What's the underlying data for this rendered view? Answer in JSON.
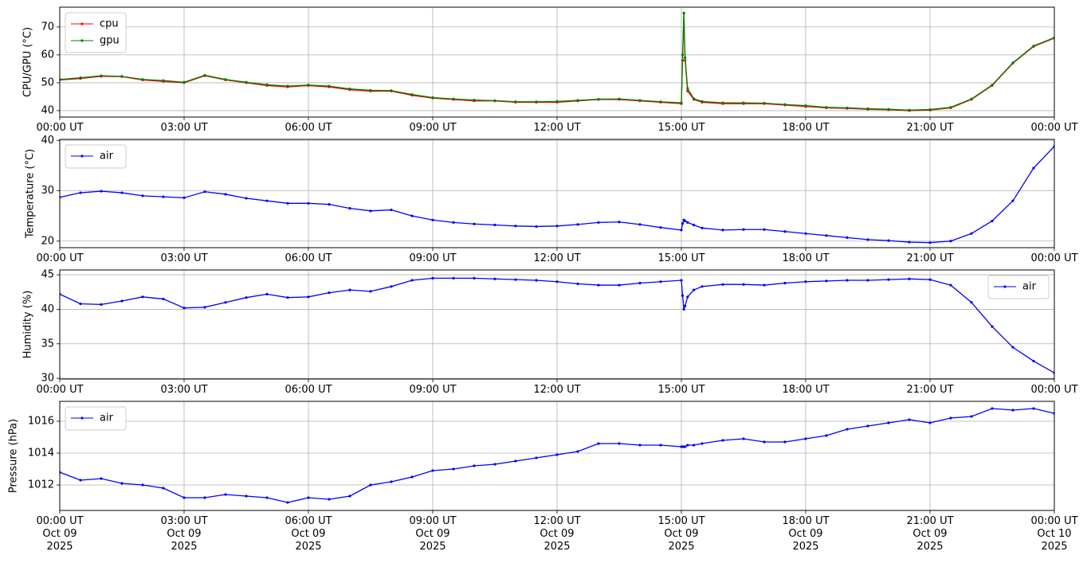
{
  "chart_data": [
    {
      "type": "line",
      "ylabel": "CPU/GPU (°C)",
      "x": [
        0,
        0.5,
        1,
        1.5,
        2,
        2.5,
        3,
        3.5,
        4,
        4.5,
        5,
        5.5,
        6,
        6.5,
        7,
        7.5,
        8,
        8.5,
        9,
        9.5,
        10,
        10.5,
        11,
        11.5,
        12,
        12.5,
        13,
        13.5,
        14,
        14.5,
        15,
        15.03,
        15.06,
        15.09,
        15.15,
        15.3,
        15.5,
        16,
        16.5,
        17,
        17.5,
        18,
        18.5,
        19,
        19.5,
        20,
        20.5,
        21,
        21.5,
        22,
        22.5,
        23,
        23.5,
        24
      ],
      "series": [
        {
          "name": "cpu",
          "color": "#ff0000",
          "values": [
            51,
            51.5,
            52.3,
            52.2,
            51,
            50.5,
            50,
            52.5,
            51,
            50,
            49,
            48.5,
            49,
            48.5,
            47.5,
            47,
            47,
            45.5,
            44.5,
            44,
            43.5,
            43.5,
            43,
            43,
            43,
            43.5,
            44,
            44,
            43.5,
            43,
            42.5,
            58,
            75,
            58,
            47,
            44,
            43,
            42.5,
            42.5,
            42.5,
            42,
            41.5,
            41,
            40.8,
            40.5,
            40.3,
            40,
            40.2,
            41,
            44,
            49,
            57,
            63,
            66
          ]
        },
        {
          "name": "gpu",
          "color": "#008000",
          "values": [
            51.2,
            51.8,
            52.5,
            52.3,
            51.2,
            50.8,
            50.2,
            52.7,
            51.2,
            50.2,
            49.3,
            48.8,
            49.2,
            48.8,
            47.8,
            47.3,
            47.2,
            45.8,
            44.7,
            44.2,
            43.8,
            43.6,
            43.2,
            43.2,
            43.3,
            43.7,
            44.1,
            44.2,
            43.7,
            43.2,
            42.8,
            60,
            75,
            59,
            48,
            44.3,
            43.3,
            42.8,
            42.8,
            42.7,
            42.2,
            41.8,
            41.2,
            41,
            40.7,
            40.5,
            40.2,
            40.4,
            41.2,
            44.2,
            49.2,
            57.2,
            63.2,
            66.2
          ]
        }
      ],
      "xlim": [
        0,
        24
      ],
      "xticks": [
        {
          "value": 0,
          "label": "00:00 UT"
        },
        {
          "value": 3,
          "label": "03:00 UT"
        },
        {
          "value": 6,
          "label": "06:00 UT"
        },
        {
          "value": 9,
          "label": "09:00 UT"
        },
        {
          "value": 12,
          "label": "12:00 UT"
        },
        {
          "value": 15,
          "label": "15:00 UT"
        },
        {
          "value": 18,
          "label": "18:00 UT"
        },
        {
          "value": 21,
          "label": "21:00 UT"
        },
        {
          "value": 24,
          "label": "00:00 UT"
        }
      ],
      "ylim": [
        37.7,
        77.1
      ],
      "yticks": [
        40,
        50,
        60,
        70
      ],
      "grid": true,
      "legend": "upper left"
    },
    {
      "type": "line",
      "ylabel": "Temperature (°C)",
      "x": [
        0,
        0.5,
        1,
        1.5,
        2,
        2.5,
        3,
        3.5,
        4,
        4.5,
        5,
        5.5,
        6,
        6.5,
        7,
        7.5,
        8,
        8.5,
        9,
        9.5,
        10,
        10.5,
        11,
        11.5,
        12,
        12.5,
        13,
        13.5,
        14,
        14.5,
        15,
        15.03,
        15.06,
        15.09,
        15.15,
        15.3,
        15.5,
        16,
        16.5,
        17,
        17.5,
        18,
        18.5,
        19,
        19.5,
        20,
        20.5,
        21,
        21.5,
        22,
        22.5,
        23,
        23.5,
        24
      ],
      "series": [
        {
          "name": "air",
          "color": "#0000ff",
          "values": [
            28.7,
            29.6,
            29.9,
            29.6,
            29,
            28.8,
            28.6,
            29.8,
            29.3,
            28.5,
            28,
            27.5,
            27.5,
            27.3,
            26.5,
            26,
            26.2,
            25,
            24.2,
            23.7,
            23.4,
            23.2,
            23,
            22.9,
            23,
            23.3,
            23.7,
            23.8,
            23.3,
            22.7,
            22.2,
            23.5,
            24.2,
            24,
            23.7,
            23.2,
            22.6,
            22.2,
            22.3,
            22.3,
            21.9,
            21.5,
            21.1,
            20.7,
            20.3,
            20.1,
            19.8,
            19.7,
            20,
            21.5,
            24,
            28,
            34.5,
            38.8
          ]
        }
      ],
      "xlim": [
        0,
        24
      ],
      "xticks": [
        {
          "value": 0,
          "label": "00:00 UT"
        },
        {
          "value": 3,
          "label": "03:00 UT"
        },
        {
          "value": 6,
          "label": "06:00 UT"
        },
        {
          "value": 9,
          "label": "09:00 UT"
        },
        {
          "value": 12,
          "label": "12:00 UT"
        },
        {
          "value": 15,
          "label": "15:00 UT"
        },
        {
          "value": 18,
          "label": "18:00 UT"
        },
        {
          "value": 21,
          "label": "21:00 UT"
        },
        {
          "value": 24,
          "label": "00:00 UT"
        }
      ],
      "ylim": [
        18.7,
        40.2
      ],
      "yticks": [
        20,
        30,
        40
      ],
      "grid": true,
      "legend": "upper left"
    },
    {
      "type": "line",
      "ylabel": "Humidity (%)",
      "x": [
        0,
        0.5,
        1,
        1.5,
        2,
        2.5,
        3,
        3.5,
        4,
        4.5,
        5,
        5.5,
        6,
        6.5,
        7,
        7.5,
        8,
        8.5,
        9,
        9.5,
        10,
        10.5,
        11,
        11.5,
        12,
        12.5,
        13,
        13.5,
        14,
        14.5,
        15,
        15.03,
        15.06,
        15.09,
        15.15,
        15.3,
        15.5,
        16,
        16.5,
        17,
        17.5,
        18,
        18.5,
        19,
        19.5,
        20,
        20.5,
        21,
        21.5,
        22,
        22.5,
        23,
        23.5,
        24
      ],
      "series": [
        {
          "name": "air",
          "color": "#0000ff",
          "values": [
            42.2,
            40.8,
            40.7,
            41.2,
            41.8,
            41.5,
            40.2,
            40.3,
            41,
            41.7,
            42.2,
            41.7,
            41.8,
            42.4,
            42.8,
            42.6,
            43.3,
            44.2,
            44.5,
            44.5,
            44.5,
            44.4,
            44.3,
            44.2,
            44,
            43.7,
            43.5,
            43.5,
            43.8,
            44,
            44.2,
            42,
            40,
            40.5,
            41.8,
            42.8,
            43.3,
            43.6,
            43.6,
            43.5,
            43.8,
            44,
            44.1,
            44.2,
            44.2,
            44.3,
            44.4,
            44.3,
            43.5,
            41,
            37.5,
            34.5,
            32.5,
            30.8
          ]
        }
      ],
      "xlim": [
        0,
        24
      ],
      "xticks": [
        {
          "value": 0,
          "label": "00:00 UT"
        },
        {
          "value": 3,
          "label": "03:00 UT"
        },
        {
          "value": 6,
          "label": "06:00 UT"
        },
        {
          "value": 9,
          "label": "09:00 UT"
        },
        {
          "value": 12,
          "label": "12:00 UT"
        },
        {
          "value": 15,
          "label": "15:00 UT"
        },
        {
          "value": 18,
          "label": "18:00 UT"
        },
        {
          "value": 21,
          "label": "21:00 UT"
        },
        {
          "value": 24,
          "label": "00:00 UT"
        }
      ],
      "ylim": [
        29.9,
        45.7
      ],
      "yticks": [
        30,
        35,
        40,
        45
      ],
      "grid": true,
      "legend": "upper right"
    },
    {
      "type": "line",
      "ylabel": "Pressure (hPa)",
      "x": [
        0,
        0.5,
        1,
        1.5,
        2,
        2.5,
        3,
        3.5,
        4,
        4.5,
        5,
        5.5,
        6,
        6.5,
        7,
        7.5,
        8,
        8.5,
        9,
        9.5,
        10,
        10.5,
        11,
        11.5,
        12,
        12.5,
        13,
        13.5,
        14,
        14.5,
        15,
        15.03,
        15.06,
        15.09,
        15.15,
        15.3,
        15.5,
        16,
        16.5,
        17,
        17.5,
        18,
        18.5,
        19,
        19.5,
        20,
        20.5,
        21,
        21.5,
        22,
        22.5,
        23,
        23.5,
        24
      ],
      "series": [
        {
          "name": "air",
          "color": "#0000ff",
          "values": [
            1012.8,
            1012.3,
            1012.4,
            1012.1,
            1012.0,
            1011.8,
            1011.2,
            1011.2,
            1011.4,
            1011.3,
            1011.2,
            1010.9,
            1011.2,
            1011.1,
            1011.3,
            1012.0,
            1012.2,
            1012.5,
            1012.9,
            1013.0,
            1013.2,
            1013.3,
            1013.5,
            1013.7,
            1013.9,
            1014.1,
            1014.6,
            1014.6,
            1014.5,
            1014.5,
            1014.4,
            1014.4,
            1014.4,
            1014.4,
            1014.5,
            1014.5,
            1014.6,
            1014.8,
            1014.9,
            1014.7,
            1014.7,
            1014.9,
            1015.1,
            1015.5,
            1015.7,
            1015.9,
            1016.1,
            1015.9,
            1016.2,
            1016.3,
            1016.8,
            1016.7,
            1016.8,
            1016.5
          ]
        }
      ],
      "xlim": [
        0,
        24
      ],
      "xticks": [
        {
          "value": 0,
          "label": "00:00 UT\nOct 09\n2025"
        },
        {
          "value": 3,
          "label": "03:00 UT\nOct 09\n2025"
        },
        {
          "value": 6,
          "label": "06:00 UT\nOct 09\n2025"
        },
        {
          "value": 9,
          "label": "09:00 UT\nOct 09\n2025"
        },
        {
          "value": 12,
          "label": "12:00 UT\nOct 09\n2025"
        },
        {
          "value": 15,
          "label": "15:00 UT\nOct 09\n2025"
        },
        {
          "value": 18,
          "label": "18:00 UT\nOct 09\n2025"
        },
        {
          "value": 21,
          "label": "21:00 UT\nOct 09\n2025"
        },
        {
          "value": 24,
          "label": "00:00 UT\nOct 10\n2025"
        }
      ],
      "ylim": [
        1010.4,
        1017.25
      ],
      "yticks": [
        1012,
        1014,
        1016
      ],
      "grid": true,
      "legend": "upper left"
    }
  ]
}
